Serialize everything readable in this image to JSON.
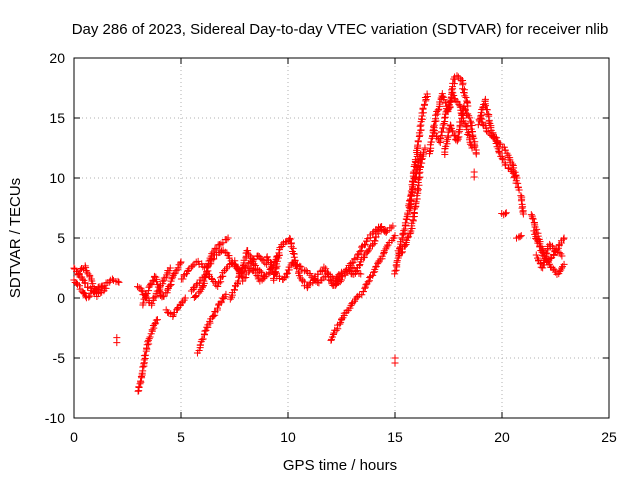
{
  "chart_data": {
    "type": "scatter",
    "title": "Day 286 of 2023, Sidereal Day-to-day VTEC variation (SDTVAR) for receiver nlib",
    "xlabel": "GPS time / hours",
    "ylabel": "SDTVAR / TECUs",
    "xlim": [
      0,
      25
    ],
    "ylim": [
      -10,
      20
    ],
    "xticks": [
      0,
      5,
      10,
      15,
      20,
      25
    ],
    "yticks": [
      -10,
      -5,
      0,
      5,
      10,
      15,
      20
    ],
    "grid": true,
    "marker": "+",
    "color": "#ff0000",
    "series": [
      {
        "name": "SDTVAR",
        "segments": [
          {
            "x": [
              0.0,
              0.3,
              0.6,
              0.9,
              1.2,
              1.5,
              1.8,
              2.1
            ],
            "y": [
              2.5,
              1.8,
              1.0,
              0.5,
              0.8,
              1.2,
              1.5,
              1.3
            ]
          },
          {
            "x": [
              0.0,
              0.3,
              0.6,
              0.9,
              1.2,
              1.5
            ],
            "y": [
              1.5,
              0.8,
              0.0,
              0.5,
              1.0,
              0.8
            ]
          },
          {
            "x": [
              0.2,
              0.5,
              0.8,
              1.1,
              1.4
            ],
            "y": [
              2.0,
              2.6,
              1.5,
              0.2,
              0.6
            ]
          },
          {
            "x": [
              2.0
            ],
            "y": [
              -3.3
            ]
          },
          {
            "x": [
              3.0,
              3.15,
              3.3,
              3.5,
              3.7,
              3.9
            ],
            "y": [
              -7.8,
              -6.5,
              -5.0,
              -3.5,
              -2.5,
              -1.8
            ]
          },
          {
            "x": [
              3.0,
              3.3,
              3.6,
              3.9,
              4.2,
              4.5
            ],
            "y": [
              1.0,
              0.2,
              -0.5,
              0.5,
              1.5,
              2.5
            ]
          },
          {
            "x": [
              3.2,
              3.5,
              3.8,
              4.1,
              4.4,
              4.7,
              5.0
            ],
            "y": [
              -0.5,
              0.8,
              1.8,
              0.0,
              0.6,
              2.0,
              3.0
            ]
          },
          {
            "x": [
              4.3,
              4.6,
              4.9,
              5.2
            ],
            "y": [
              -1.0,
              -1.5,
              -0.8,
              0.0
            ]
          },
          {
            "x": [
              5.0,
              5.4,
              5.8,
              6.2,
              6.6,
              7.0,
              7.4,
              7.8,
              8.2,
              8.6,
              9.0
            ],
            "y": [
              1.5,
              2.5,
              3.0,
              2.5,
              3.5,
              4.0,
              3.0,
              2.0,
              3.0,
              3.5,
              2.8
            ]
          },
          {
            "x": [
              5.5,
              5.9,
              6.3,
              6.7,
              7.1,
              7.5,
              7.9,
              8.3,
              8.7,
              9.1,
              9.5
            ],
            "y": [
              0.5,
              1.5,
              2.0,
              1.0,
              2.5,
              3.0,
              1.5,
              2.5,
              1.5,
              2.0,
              3.5
            ]
          },
          {
            "x": [
              5.6,
              6.0,
              6.4,
              6.8,
              7.2
            ],
            "y": [
              0.0,
              0.8,
              3.5,
              4.5,
              5.0
            ]
          },
          {
            "x": [
              5.8,
              6.0,
              6.2,
              6.5,
              6.8,
              7.1
            ],
            "y": [
              -4.5,
              -3.5,
              -2.5,
              -1.5,
              -0.5,
              0.3
            ]
          },
          {
            "x": [
              7.3,
              7.7,
              8.1,
              8.5,
              8.9
            ],
            "y": [
              0.0,
              1.5,
              4.0,
              2.5,
              1.8
            ]
          },
          {
            "x": [
              9.0,
              9.4,
              9.8,
              10.2,
              10.6,
              11.0,
              11.4,
              11.8,
              12.2,
              12.6,
              13.0,
              13.4
            ],
            "y": [
              3.5,
              2.0,
              1.5,
              3.0,
              2.5,
              2.0,
              1.2,
              2.0,
              1.5,
              2.2,
              2.5,
              2.0
            ]
          },
          {
            "x": [
              9.3,
              9.7,
              10.1,
              10.5,
              10.9,
              11.3,
              11.7,
              12.1,
              12.5
            ],
            "y": [
              1.5,
              4.5,
              5.0,
              2.0,
              0.8,
              1.8,
              2.5,
              1.0,
              1.5
            ]
          },
          {
            "x": [
              12.0,
              12.3,
              12.6,
              12.9,
              13.2,
              13.5,
              13.8,
              14.1,
              14.4,
              14.7,
              15.0
            ],
            "y": [
              -3.5,
              -2.5,
              -1.5,
              -0.8,
              0.0,
              0.5,
              1.5,
              2.5,
              3.5,
              4.5,
              5.2
            ]
          },
          {
            "x": [
              12.2,
              12.5,
              12.8,
              13.1,
              13.4,
              13.7,
              14.0,
              14.3,
              14.6
            ],
            "y": [
              1.0,
              1.8,
              2.2,
              2.0,
              3.0,
              3.8,
              4.5,
              5.8,
              5.5
            ]
          },
          {
            "x": [
              12.8,
              13.1,
              13.4,
              13.7,
              14.0,
              14.3,
              14.6,
              14.9
            ],
            "y": [
              2.5,
              3.2,
              4.0,
              4.8,
              5.5,
              6.0,
              5.5,
              6.0
            ]
          },
          {
            "x": [
              15.0
            ],
            "y": [
              -5.0
            ]
          },
          {
            "x": [
              15.0,
              15.2,
              15.4,
              15.6,
              15.8,
              16.0,
              16.2
            ],
            "y": [
              2.0,
              4.0,
              5.5,
              7.0,
              9.0,
              10.5,
              12.0
            ]
          },
          {
            "x": [
              15.2,
              15.5,
              15.8,
              16.0,
              16.2,
              16.4
            ],
            "y": [
              3.5,
              4.5,
              6.0,
              8.0,
              11.0,
              12.5
            ]
          },
          {
            "x": [
              15.7,
              15.9,
              16.1,
              16.3,
              16.5
            ],
            "y": [
              7.5,
              10.5,
              13.0,
              15.5,
              17.0
            ]
          },
          {
            "x": [
              16.6,
              16.9,
              17.2,
              17.5,
              17.8,
              18.1,
              18.4
            ],
            "y": [
              12.0,
              15.0,
              17.0,
              15.5,
              18.5,
              18.2,
              16.0
            ]
          },
          {
            "x": [
              16.8,
              17.1,
              17.4,
              17.7,
              18.0,
              18.3,
              18.6
            ],
            "y": [
              14.0,
              13.0,
              15.5,
              17.0,
              16.0,
              14.5,
              12.5
            ]
          },
          {
            "x": [
              17.3,
              17.6,
              17.9,
              18.2,
              18.5,
              18.8
            ],
            "y": [
              12.0,
              14.5,
              13.0,
              16.0,
              15.0,
              12.0
            ]
          },
          {
            "x": [
              18.7
            ],
            "y": [
              10.5
            ]
          },
          {
            "x": [
              18.9,
              19.2,
              19.5,
              19.8,
              20.1,
              20.4,
              20.7
            ],
            "y": [
              14.5,
              16.5,
              14.0,
              13.0,
              12.5,
              11.5,
              10.0
            ]
          },
          {
            "x": [
              19.0,
              19.3,
              19.6,
              19.9,
              20.2,
              20.5,
              20.8
            ],
            "y": [
              15.0,
              14.0,
              13.5,
              12.0,
              11.0,
              10.5,
              9.0
            ]
          },
          {
            "x": [
              20.9,
              21.0
            ],
            "y": [
              8.5,
              7.0
            ]
          },
          {
            "x": [
              20.0,
              20.2
            ],
            "y": [
              7.0,
              7.1
            ]
          },
          {
            "x": [
              20.7,
              20.9
            ],
            "y": [
              5.0,
              5.2
            ]
          },
          {
            "x": [
              21.4,
              21.7,
              22.0,
              22.3,
              22.6,
              22.9
            ],
            "y": [
              7.0,
              5.0,
              3.5,
              2.5,
              2.0,
              2.8
            ]
          },
          {
            "x": [
              21.5,
              21.8,
              22.1,
              22.4,
              22.7,
              22.9
            ],
            "y": [
              5.5,
              4.0,
              3.0,
              3.5,
              4.5,
              5.0
            ]
          },
          {
            "x": [
              21.6,
              21.9,
              22.2,
              22.5,
              22.8
            ],
            "y": [
              3.5,
              2.5,
              4.5,
              4.0,
              3.5
            ]
          }
        ]
      }
    ]
  }
}
